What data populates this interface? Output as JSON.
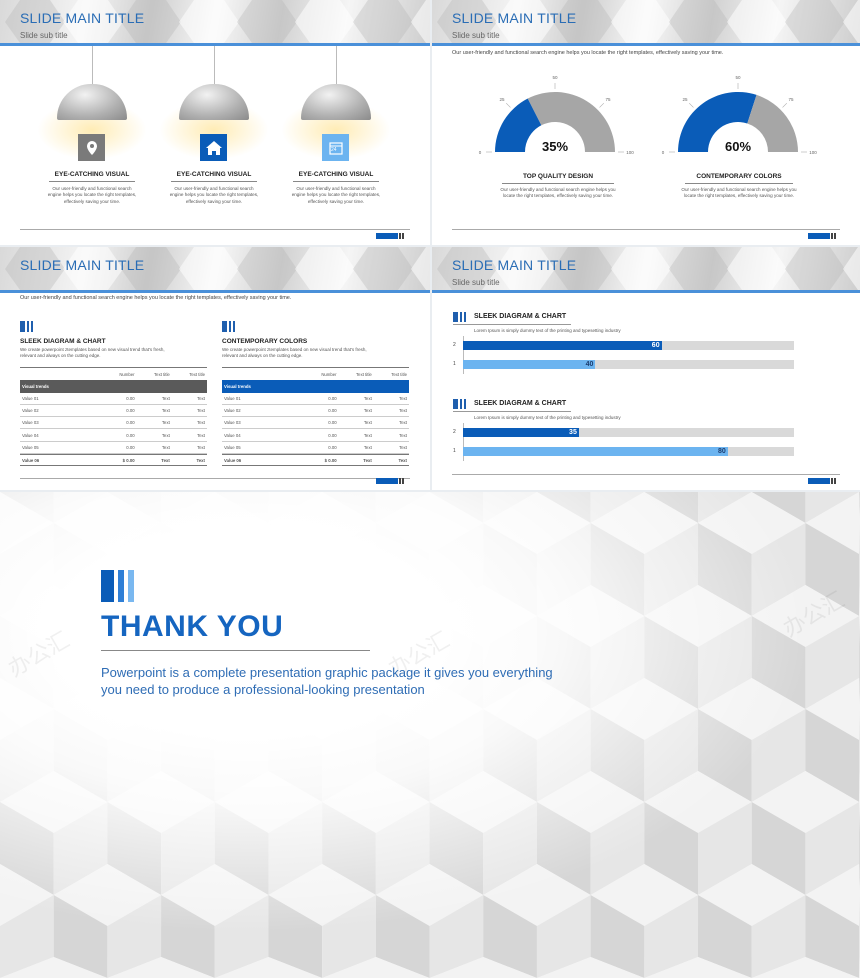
{
  "slides": [
    {
      "title": "SLIDE MAIN TITLE",
      "subtitle": "Slide sub title",
      "features": [
        {
          "icon": "map-pin-icon",
          "icon_color": "#7a7a7a",
          "heading": "EYE-CATCHING VISUAL",
          "text": "Our user-friendly and functional search engine helps you locate the right templates, effectively saving your time."
        },
        {
          "icon": "home-icon",
          "icon_color": "#0a5cb8",
          "heading": "EYE-CATCHING VISUAL",
          "text": "Our user-friendly and functional search engine helps you locate the right templates, effectively saving your time."
        },
        {
          "icon": "calendar-icon",
          "icon_color": "#6cb4f0",
          "icon_text": "24",
          "heading": "EYE-CATCHING VISUAL",
          "text": "Our user-friendly and functional search engine helps you locate the right templates, effectively saving your time."
        }
      ]
    },
    {
      "title": "SLIDE MAIN TITLE",
      "subtitle": "Slide sub title",
      "intro": "Our user-friendly and functional search engine helps you locate the right templates, effectively saving your time.",
      "gauges": [
        {
          "value": 35,
          "label": "35%",
          "heading": "TOP QUALITY DESIGN",
          "text": "Our user-friendly and functional search engine helps you locate the right templates, effectively saving your time."
        },
        {
          "value": 60,
          "label": "60%",
          "heading": "CONTEMPORARY COLORS",
          "text": "Our user-friendly and functional search engine helps you locate the right templates, effectively saving your time."
        }
      ],
      "gauge_ticks": [
        "0",
        "25",
        "50",
        "75",
        "100"
      ]
    },
    {
      "title": "SLIDE MAIN TITLE",
      "intro": "Our user-friendly and functional search engine helps you locate the right templates, effectively saving your time.",
      "tables": [
        {
          "heading": "SLEEK DIAGRAM & CHART",
          "text": "We create powerpoint ztemplates based on new visual trend that's fresh, relevant and always on the cutting edge.",
          "band_color": "#5a5a5a",
          "columns": [
            "",
            "Number",
            "Text title",
            "Text title"
          ],
          "band": "Visual trends",
          "rows": [
            [
              "Value 01",
              "0.00",
              "Text",
              "Text"
            ],
            [
              "Value 02",
              "0.00",
              "Text",
              "Text"
            ],
            [
              "Value 03",
              "0.00",
              "Text",
              "Text"
            ],
            [
              "Value 04",
              "0.00",
              "Text",
              "Text"
            ],
            [
              "Value 05",
              "0.00",
              "Text",
              "Text"
            ],
            [
              "Value 06",
              "$ 0.00",
              "Text",
              "Text"
            ]
          ]
        },
        {
          "heading": "CONTEMPORARY COLORS",
          "text": "We create powerpoint ztemplates based on new visual trend that's fresh, relevant and always on the cutting edge.",
          "band_color": "#0a5cb8",
          "columns": [
            "",
            "Number",
            "Text title",
            "Text title"
          ],
          "band": "Visual trends",
          "rows": [
            [
              "Value 01",
              "0.00",
              "Text",
              "Text"
            ],
            [
              "Value 02",
              "0.00",
              "Text",
              "Text"
            ],
            [
              "Value 03",
              "0.00",
              "Text",
              "Text"
            ],
            [
              "Value 04",
              "0.00",
              "Text",
              "Text"
            ],
            [
              "Value 05",
              "0.00",
              "Text",
              "Text"
            ],
            [
              "Value 06",
              "$ 0.00",
              "Text",
              "Text"
            ]
          ]
        }
      ]
    },
    {
      "title": "SLIDE MAIN TITLE",
      "subtitle": "Slide sub title",
      "charts": [
        {
          "heading": "SLEEK DIAGRAM & CHART",
          "text": "Lorem Ipsum is simply dummy text of the printing and typesetting industry",
          "bars": [
            {
              "category": "2",
              "value": 60,
              "color": "#0a5cb8"
            },
            {
              "category": "1",
              "value": 40,
              "color": "#6cb4f0"
            }
          ]
        },
        {
          "heading": "SLEEK DIAGRAM & CHART",
          "text": "Lorem Ipsum is simply dummy text of the printing and typesetting industry",
          "bars": [
            {
              "category": "2",
              "value": 35,
              "color": "#0a5cb8"
            },
            {
              "category": "1",
              "value": 80,
              "color": "#6cb4f0"
            }
          ]
        }
      ],
      "max": 100
    }
  ],
  "thank_you": {
    "title": "THANK YOU",
    "line1": "Powerpoint is a complete presentation graphic package it gives you everything",
    "line2": "you need to produce a professional-looking presentation",
    "watermark": "办公汇"
  },
  "colors": {
    "primary": "#0a5cb8",
    "light": "#6cb4f0",
    "gray": "#a6a6a6",
    "title": "#2a6db5"
  }
}
